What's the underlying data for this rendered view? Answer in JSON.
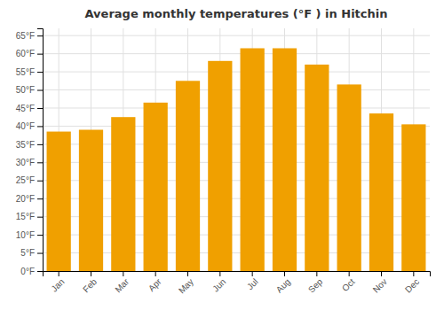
{
  "chart_data": {
    "type": "bar",
    "title": "Average monthly temperatures (°F ) in Hitchin",
    "categories": [
      "Jan",
      "Feb",
      "Mar",
      "Apr",
      "May",
      "Jun",
      "Jul",
      "Aug",
      "Sep",
      "Oct",
      "Nov",
      "Dec"
    ],
    "values": [
      38.5,
      39.0,
      42.5,
      46.5,
      52.5,
      58.0,
      61.5,
      61.5,
      57.0,
      51.5,
      43.5,
      40.5
    ],
    "color": "#F0A000",
    "ylim": [
      0,
      67
    ],
    "yticks": [
      {
        "value": 0,
        "label": "0°F"
      },
      {
        "value": 5,
        "label": "5°F"
      },
      {
        "value": 10,
        "label": "10°F"
      },
      {
        "value": 15,
        "label": "15°F"
      },
      {
        "value": 20,
        "label": "20°F"
      },
      {
        "value": 25,
        "label": "25°F"
      },
      {
        "value": 30,
        "label": "30°F"
      },
      {
        "value": 35,
        "label": "35°F"
      },
      {
        "value": 40,
        "label": "40°F"
      },
      {
        "value": 45,
        "label": "45°F"
      },
      {
        "value": 50,
        "label": "50°F"
      },
      {
        "value": 55,
        "label": "55°F"
      },
      {
        "value": 60,
        "label": "60°F"
      },
      {
        "value": 65,
        "label": "65°F"
      }
    ],
    "grid": true
  }
}
